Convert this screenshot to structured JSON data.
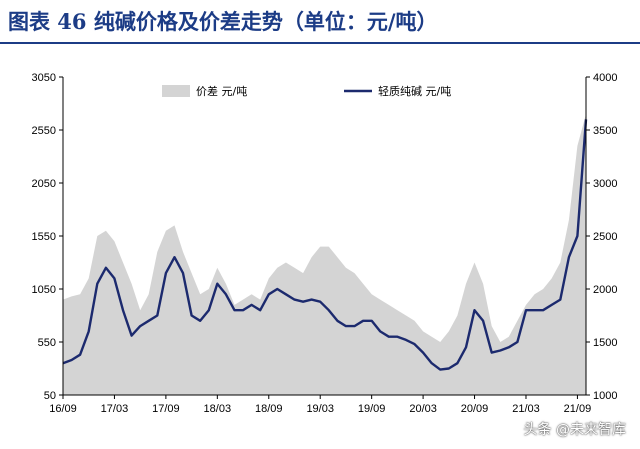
{
  "header": {
    "title": "图表 46    纯碱价格及价差走势（单位：元/吨）"
  },
  "watermark": "头条 @未来智库",
  "colors": {
    "title": "#1c3c86",
    "area": "#d4d4d4",
    "line": "#1c2a6e",
    "axis": "#000000"
  },
  "chart_data": {
    "type": "line",
    "title": "",
    "legend": [
      "价差 元/吨",
      "轻质纯碱 元/吨"
    ],
    "legend_position": "top-center",
    "grid": false,
    "left_axis": {
      "min": 50,
      "max": 3050,
      "ticks": [
        "3050",
        "2550",
        "2050",
        "1550",
        "1050",
        "550",
        "50"
      ]
    },
    "right_axis": {
      "min": 1000,
      "max": 4000,
      "ticks": [
        "4000",
        "3500",
        "3000",
        "2500",
        "2000",
        "1500",
        "1000"
      ]
    },
    "x_ticks": [
      "16/09",
      "17/03",
      "17/09",
      "18/03",
      "18/09",
      "19/03",
      "19/09",
      "20/03",
      "20/09",
      "21/03",
      "21/09"
    ],
    "x": [
      "16/09",
      "16/10",
      "16/11",
      "16/12",
      "17/01",
      "17/02",
      "17/03",
      "17/04",
      "17/05",
      "17/06",
      "17/07",
      "17/08",
      "17/09",
      "17/10",
      "17/11",
      "17/12",
      "18/01",
      "18/02",
      "18/03",
      "18/04",
      "18/05",
      "18/06",
      "18/07",
      "18/08",
      "18/09",
      "18/10",
      "18/11",
      "18/12",
      "19/01",
      "19/02",
      "19/03",
      "19/04",
      "19/05",
      "19/06",
      "19/07",
      "19/08",
      "19/09",
      "19/10",
      "19/11",
      "19/12",
      "20/01",
      "20/02",
      "20/03",
      "20/04",
      "20/05",
      "20/06",
      "20/07",
      "20/08",
      "20/09",
      "20/10",
      "20/11",
      "20/12",
      "21/01",
      "21/02",
      "21/03",
      "21/04",
      "21/05",
      "21/06",
      "21/07",
      "21/08",
      "21/09",
      "21/10"
    ],
    "series": [
      {
        "name": "价差 元/吨",
        "type": "area",
        "axis": "left",
        "values": [
          950,
          980,
          1000,
          1150,
          1550,
          1600,
          1500,
          1300,
          1100,
          850,
          1000,
          1400,
          1600,
          1650,
          1400,
          1200,
          1000,
          1050,
          1250,
          1100,
          900,
          950,
          1000,
          950,
          1150,
          1250,
          1300,
          1250,
          1200,
          1350,
          1450,
          1450,
          1350,
          1250,
          1200,
          1100,
          1000,
          950,
          900,
          850,
          800,
          750,
          650,
          600,
          550,
          650,
          800,
          1100,
          1300,
          1100,
          700,
          550,
          600,
          750,
          900,
          1000,
          1050,
          1150,
          1300,
          1700,
          2400,
          2700
        ]
      },
      {
        "name": "轻质纯碱 元/吨",
        "type": "line",
        "axis": "right",
        "values": [
          1300,
          1330,
          1380,
          1600,
          2050,
          2200,
          2100,
          1800,
          1560,
          1650,
          1700,
          1750,
          2150,
          2300,
          2150,
          1750,
          1700,
          1800,
          2050,
          1950,
          1800,
          1800,
          1850,
          1800,
          1950,
          2000,
          1950,
          1900,
          1880,
          1900,
          1880,
          1800,
          1700,
          1650,
          1650,
          1700,
          1700,
          1600,
          1550,
          1550,
          1520,
          1480,
          1400,
          1300,
          1240,
          1250,
          1300,
          1450,
          1800,
          1700,
          1400,
          1420,
          1450,
          1500,
          1800,
          1800,
          1800,
          1850,
          1900,
          2300,
          2500,
          3600
        ]
      }
    ]
  }
}
